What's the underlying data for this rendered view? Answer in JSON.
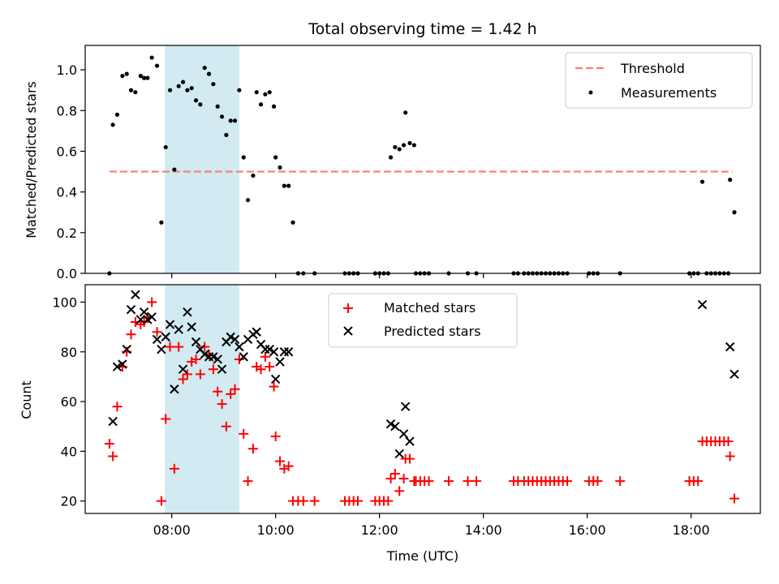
{
  "chart_data": [
    {
      "type": "scatter",
      "title": "Total observing time = 1.42 h",
      "xlabel": "",
      "ylabel": "Matched/Predicted stars",
      "xlim": [
        "06:20",
        "19:20"
      ],
      "ylim": [
        0,
        1.12
      ],
      "y_ticks": [
        "0.0",
        "0.2",
        "0.4",
        "0.6",
        "0.8",
        "1.0"
      ],
      "shaded_interval": [
        "07:52",
        "09:18"
      ],
      "threshold": {
        "name": "Threshold",
        "value": 0.5,
        "x_range": [
          "06:48",
          "18:48"
        ],
        "color": "#ff7777"
      },
      "series": [
        {
          "name": "Measurements",
          "color": "#000000",
          "points": [
            [
              "06:48",
              0
            ],
            [
              "06:52",
              0.73
            ],
            [
              "06:57",
              0.78
            ],
            [
              "07:03",
              0.97
            ],
            [
              "07:08",
              0.98
            ],
            [
              "07:13",
              0.9
            ],
            [
              "07:18",
              0.89
            ],
            [
              "07:24",
              0.97
            ],
            [
              "07:28",
              0.96
            ],
            [
              "07:32",
              0.96
            ],
            [
              "07:37",
              1.06
            ],
            [
              "07:43",
              1.02
            ],
            [
              "07:48",
              0.25
            ],
            [
              "07:53",
              0.62
            ],
            [
              "07:58",
              0.9
            ],
            [
              "08:03",
              0.51
            ],
            [
              "08:08",
              0.92
            ],
            [
              "08:13",
              0.94
            ],
            [
              "08:18",
              0.9
            ],
            [
              "08:23",
              0.91
            ],
            [
              "08:28",
              0.85
            ],
            [
              "08:33",
              0.83
            ],
            [
              "08:38",
              1.01
            ],
            [
              "08:43",
              0.98
            ],
            [
              "08:48",
              0.93
            ],
            [
              "08:53",
              0.82
            ],
            [
              "08:58",
              0.77
            ],
            [
              "09:03",
              0.68
            ],
            [
              "09:08",
              0.75
            ],
            [
              "09:13",
              0.75
            ],
            [
              "09:18",
              0.9
            ],
            [
              "09:23",
              0.57
            ],
            [
              "09:28",
              0.36
            ],
            [
              "09:34",
              0.48
            ],
            [
              "09:38",
              0.89
            ],
            [
              "09:43",
              0.83
            ],
            [
              "09:48",
              0.88
            ],
            [
              "09:53",
              0.89
            ],
            [
              "09:58",
              0.82
            ],
            [
              "10:00",
              0.57
            ],
            [
              "10:05",
              0.52
            ],
            [
              "10:10",
              0.43
            ],
            [
              "10:15",
              0.43
            ],
            [
              "10:20",
              0.25
            ],
            [
              "10:26",
              0
            ],
            [
              "10:32",
              0
            ],
            [
              "10:45",
              0
            ],
            [
              "11:20",
              0
            ],
            [
              "11:25",
              0
            ],
            [
              "11:30",
              0
            ],
            [
              "11:35",
              0
            ],
            [
              "11:55",
              0
            ],
            [
              "12:00",
              0
            ],
            [
              "12:05",
              0
            ],
            [
              "12:10",
              0
            ],
            [
              "12:13",
              0.57
            ],
            [
              "12:18",
              0.62
            ],
            [
              "12:23",
              0.61
            ],
            [
              "12:28",
              0.63
            ],
            [
              "12:30",
              0.79
            ],
            [
              "12:35",
              0.64
            ],
            [
              "12:40",
              0.63
            ],
            [
              "12:42",
              0
            ],
            [
              "12:47",
              0
            ],
            [
              "12:52",
              0
            ],
            [
              "12:57",
              0
            ],
            [
              "13:20",
              0
            ],
            [
              "13:42",
              0
            ],
            [
              "13:52",
              0
            ],
            [
              "14:35",
              0
            ],
            [
              "14:40",
              0
            ],
            [
              "14:47",
              0
            ],
            [
              "14:52",
              0
            ],
            [
              "14:57",
              0
            ],
            [
              "15:02",
              0
            ],
            [
              "15:07",
              0
            ],
            [
              "15:12",
              0
            ],
            [
              "15:17",
              0
            ],
            [
              "15:22",
              0
            ],
            [
              "15:27",
              0
            ],
            [
              "15:32",
              0
            ],
            [
              "15:37",
              0
            ],
            [
              "16:02",
              0
            ],
            [
              "16:07",
              0
            ],
            [
              "16:12",
              0
            ],
            [
              "16:38",
              0
            ],
            [
              "17:58",
              0
            ],
            [
              "18:03",
              0
            ],
            [
              "18:08",
              0
            ],
            [
              "18:13",
              0.45
            ],
            [
              "18:18",
              0
            ],
            [
              "18:23",
              0
            ],
            [
              "18:28",
              0
            ],
            [
              "18:33",
              0
            ],
            [
              "18:38",
              0
            ],
            [
              "18:43",
              0
            ],
            [
              "18:45",
              0.46
            ],
            [
              "18:50",
              0.3
            ]
          ]
        }
      ],
      "legend": {
        "position": "upper right",
        "entries": [
          "Threshold",
          "Measurements"
        ]
      }
    },
    {
      "type": "scatter",
      "title": "",
      "xlabel": "Time (UTC)",
      "ylabel": "Count",
      "xlim": [
        "06:20",
        "19:20"
      ],
      "ylim": [
        15,
        107
      ],
      "x_ticks": [
        "08:00",
        "10:00",
        "12:00",
        "14:00",
        "16:00",
        "18:00"
      ],
      "y_ticks": [
        "20",
        "40",
        "60",
        "80",
        "100"
      ],
      "shaded_interval": [
        "07:52",
        "09:18"
      ],
      "series": [
        {
          "name": "Matched stars",
          "marker": "+",
          "color": "#ff0000",
          "points": [
            [
              "06:48",
              43
            ],
            [
              "06:52",
              38
            ],
            [
              "06:57",
              58
            ],
            [
              "07:03",
              74
            ],
            [
              "07:08",
              80
            ],
            [
              "07:13",
              87
            ],
            [
              "07:18",
              92
            ],
            [
              "07:24",
              91
            ],
            [
              "07:28",
              92
            ],
            [
              "07:32",
              94
            ],
            [
              "07:37",
              100
            ],
            [
              "07:43",
              88
            ],
            [
              "07:48",
              20
            ],
            [
              "07:53",
              53
            ],
            [
              "07:58",
              82
            ],
            [
              "08:03",
              33
            ],
            [
              "08:08",
              82
            ],
            [
              "08:13",
              69
            ],
            [
              "08:18",
              71
            ],
            [
              "08:23",
              76
            ],
            [
              "08:28",
              77
            ],
            [
              "08:33",
              71
            ],
            [
              "08:38",
              82
            ],
            [
              "08:43",
              79
            ],
            [
              "08:48",
              73
            ],
            [
              "08:53",
              64
            ],
            [
              "08:58",
              59
            ],
            [
              "09:03",
              50
            ],
            [
              "09:08",
              63
            ],
            [
              "09:13",
              65
            ],
            [
              "09:18",
              77
            ],
            [
              "09:23",
              47
            ],
            [
              "09:28",
              28
            ],
            [
              "09:34",
              41
            ],
            [
              "09:38",
              74
            ],
            [
              "09:43",
              73
            ],
            [
              "09:48",
              78
            ],
            [
              "09:53",
              74
            ],
            [
              "09:58",
              66
            ],
            [
              "10:00",
              46
            ],
            [
              "10:05",
              36
            ],
            [
              "10:10",
              33
            ],
            [
              "10:15",
              34
            ],
            [
              "10:20",
              20
            ],
            [
              "10:26",
              20
            ],
            [
              "10:32",
              20
            ],
            [
              "10:45",
              20
            ],
            [
              "11:20",
              20
            ],
            [
              "11:25",
              20
            ],
            [
              "11:30",
              20
            ],
            [
              "11:35",
              20
            ],
            [
              "11:55",
              20
            ],
            [
              "12:00",
              20
            ],
            [
              "12:05",
              20
            ],
            [
              "12:10",
              20
            ],
            [
              "12:13",
              29
            ],
            [
              "12:18",
              31
            ],
            [
              "12:23",
              24
            ],
            [
              "12:28",
              29
            ],
            [
              "12:30",
              37
            ],
            [
              "12:35",
              37
            ],
            [
              "12:40",
              28
            ],
            [
              "12:42",
              28
            ],
            [
              "12:47",
              28
            ],
            [
              "12:52",
              28
            ],
            [
              "12:57",
              28
            ],
            [
              "13:20",
              28
            ],
            [
              "13:42",
              28
            ],
            [
              "13:52",
              28
            ],
            [
              "14:35",
              28
            ],
            [
              "14:40",
              28
            ],
            [
              "14:47",
              28
            ],
            [
              "14:52",
              28
            ],
            [
              "14:57",
              28
            ],
            [
              "15:02",
              28
            ],
            [
              "15:07",
              28
            ],
            [
              "15:12",
              28
            ],
            [
              "15:17",
              28
            ],
            [
              "15:22",
              28
            ],
            [
              "15:27",
              28
            ],
            [
              "15:32",
              28
            ],
            [
              "15:37",
              28
            ],
            [
              "16:02",
              28
            ],
            [
              "16:07",
              28
            ],
            [
              "16:12",
              28
            ],
            [
              "16:38",
              28
            ],
            [
              "17:58",
              28
            ],
            [
              "18:03",
              28
            ],
            [
              "18:08",
              28
            ],
            [
              "18:13",
              44
            ],
            [
              "18:18",
              44
            ],
            [
              "18:23",
              44
            ],
            [
              "18:28",
              44
            ],
            [
              "18:33",
              44
            ],
            [
              "18:38",
              44
            ],
            [
              "18:43",
              44
            ],
            [
              "18:45",
              38
            ],
            [
              "18:50",
              21
            ]
          ]
        },
        {
          "name": "Predicted stars",
          "marker": "x",
          "color": "#000000",
          "points": [
            [
              "06:52",
              52
            ],
            [
              "06:57",
              74
            ],
            [
              "07:03",
              75
            ],
            [
              "07:08",
              81
            ],
            [
              "07:13",
              97
            ],
            [
              "07:18",
              103
            ],
            [
              "07:24",
              93
            ],
            [
              "07:28",
              96
            ],
            [
              "07:32",
              93
            ],
            [
              "07:37",
              94
            ],
            [
              "07:43",
              85
            ],
            [
              "07:48",
              81
            ],
            [
              "07:53",
              86
            ],
            [
              "07:58",
              91
            ],
            [
              "08:03",
              65
            ],
            [
              "08:08",
              89
            ],
            [
              "08:13",
              73
            ],
            [
              "08:18",
              96
            ],
            [
              "08:23",
              90
            ],
            [
              "08:28",
              84
            ],
            [
              "08:33",
              81
            ],
            [
              "08:38",
              79
            ],
            [
              "08:43",
              78
            ],
            [
              "08:48",
              78
            ],
            [
              "08:53",
              77
            ],
            [
              "08:58",
              73
            ],
            [
              "09:03",
              84
            ],
            [
              "09:08",
              86
            ],
            [
              "09:13",
              85
            ],
            [
              "09:18",
              82
            ],
            [
              "09:23",
              78
            ],
            [
              "09:28",
              85
            ],
            [
              "09:34",
              87
            ],
            [
              "09:38",
              88
            ],
            [
              "09:43",
              83
            ],
            [
              "09:48",
              81
            ],
            [
              "09:53",
              81
            ],
            [
              "09:58",
              80
            ],
            [
              "10:00",
              69
            ],
            [
              "10:05",
              76
            ],
            [
              "10:10",
              80
            ],
            [
              "10:15",
              80
            ],
            [
              "12:13",
              51
            ],
            [
              "12:18",
              50
            ],
            [
              "12:23",
              39
            ],
            [
              "12:28",
              47
            ],
            [
              "12:30",
              58
            ],
            [
              "12:35",
              44
            ],
            [
              "18:13",
              99
            ],
            [
              "18:45",
              82
            ],
            [
              "18:50",
              71
            ]
          ]
        }
      ],
      "legend": {
        "position": "upper center",
        "entries": [
          "Matched stars",
          "Predicted stars"
        ]
      }
    }
  ]
}
